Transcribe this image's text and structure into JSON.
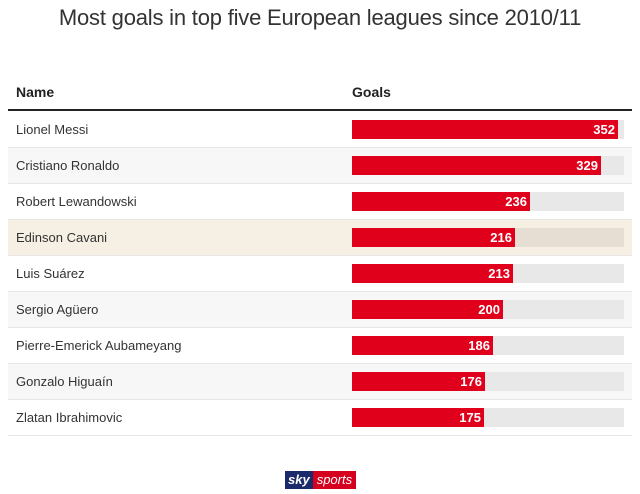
{
  "title": "Most goals in top five European leagues since 2010/11",
  "header": {
    "name": "Name",
    "goals": "Goals"
  },
  "chart_data": {
    "type": "bar",
    "title": "Most goals in top five European leagues since 2010/11",
    "xlabel": "",
    "ylabel": "",
    "xlim": [
      0,
      360
    ],
    "categories": [
      "Lionel Messi",
      "Cristiano Ronaldo",
      "Robert Lewandowski",
      "Edinson Cavani",
      "Luis Suárez",
      "Sergio Agüero",
      "Pierre-Emerick Aubameyang",
      "Gonzalo Higuaín",
      "Zlatan Ibrahimovic"
    ],
    "values": [
      352,
      329,
      236,
      216,
      213,
      200,
      186,
      176,
      175
    ],
    "value_labels": [
      "352",
      "329",
      "236",
      "216",
      "213",
      "200",
      "186",
      "176",
      "175"
    ],
    "highlight_index": 3,
    "bar_color": "#e0001b",
    "track_color": "#e8e8e8",
    "highlight_row_color": "#f6efe3"
  },
  "logo": {
    "part1": "sky",
    "part2": "sports"
  }
}
